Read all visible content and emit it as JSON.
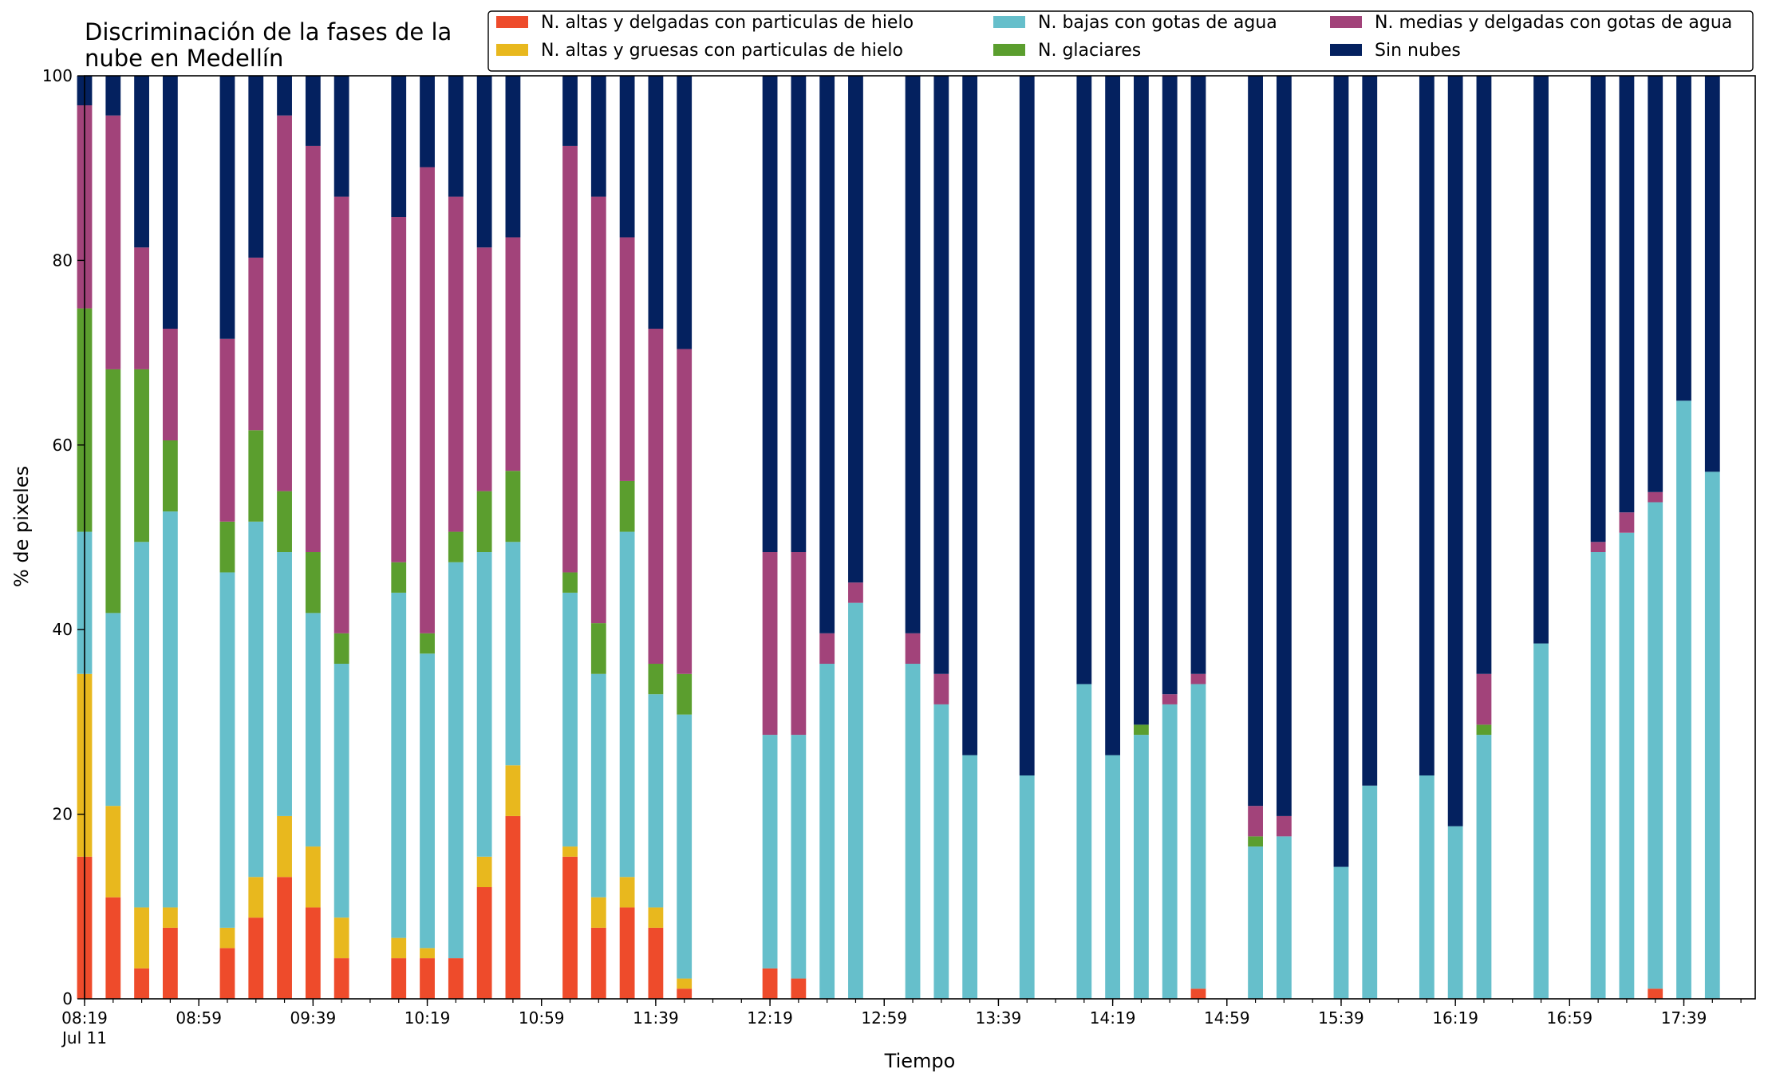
{
  "chart_data": {
    "type": "bar",
    "stacked": true,
    "title_lines": [
      "Discriminación de la fases de la",
      "nube en Medellín"
    ],
    "xlabel": "Tiempo",
    "ylabel": "% de pixeles",
    "ylim": [
      0,
      100
    ],
    "yticks": [
      0,
      20,
      40,
      60,
      80,
      100
    ],
    "x_start": "08:19",
    "x_end": "18:04",
    "x_step_minutes": 10,
    "xticks": [
      "08:19",
      "08:59",
      "09:39",
      "10:19",
      "10:59",
      "11:39",
      "12:19",
      "12:59",
      "13:39",
      "14:19",
      "14:59",
      "15:39",
      "16:19",
      "16:59",
      "17:39"
    ],
    "date_label": "Jul 11",
    "grid": false,
    "legend_position": "top-right",
    "series": [
      {
        "key": "altas_delgadas",
        "name": "N. altas y delgadas con particulas de hielo",
        "color": "#ee4b2b"
      },
      {
        "key": "altas_gruesas",
        "name": "N. altas y gruesas con particulas de hielo",
        "color": "#e8b81e"
      },
      {
        "key": "bajas",
        "name": "N. bajas con gotas de agua",
        "color": "#66bfcb"
      },
      {
        "key": "glaciares",
        "name": "N. glaciares",
        "color": "#5b9e2e"
      },
      {
        "key": "medias",
        "name": "N. medias y delgadas con gotas de agua",
        "color": "#a2437a"
      },
      {
        "key": "sin_nubes",
        "name": "Sin nubes",
        "color": "#04215f"
      }
    ],
    "legend_layout": [
      [
        "altas_delgadas",
        "bajas",
        "medias"
      ],
      [
        "altas_gruesas",
        "glaciares",
        "sin_nubes"
      ]
    ],
    "bars": [
      {
        "x": "08:19",
        "altas_delgadas": 15.4,
        "altas_gruesas": 19.8,
        "bajas": 15.4,
        "glaciares": 24.2,
        "medias": 22.0,
        "sin_nubes": 3.2
      },
      {
        "x": "08:29",
        "altas_delgadas": 11.0,
        "altas_gruesas": 9.9,
        "bajas": 20.9,
        "glaciares": 26.4,
        "medias": 27.5,
        "sin_nubes": 4.3
      },
      {
        "x": "08:39",
        "altas_delgadas": 3.3,
        "altas_gruesas": 6.6,
        "bajas": 39.6,
        "glaciares": 18.7,
        "medias": 13.2,
        "sin_nubes": 18.6
      },
      {
        "x": "08:49",
        "altas_delgadas": 7.7,
        "altas_gruesas": 2.2,
        "bajas": 42.9,
        "glaciares": 7.7,
        "medias": 12.1,
        "sin_nubes": 27.4
      },
      {
        "x": "09:09",
        "altas_delgadas": 5.5,
        "altas_gruesas": 2.2,
        "bajas": 38.5,
        "glaciares": 5.5,
        "medias": 19.8,
        "sin_nubes": 28.5
      },
      {
        "x": "09:19",
        "altas_delgadas": 8.8,
        "altas_gruesas": 4.4,
        "bajas": 38.5,
        "glaciares": 9.9,
        "medias": 18.7,
        "sin_nubes": 19.7
      },
      {
        "x": "09:29",
        "altas_delgadas": 13.2,
        "altas_gruesas": 6.6,
        "bajas": 28.6,
        "glaciares": 6.6,
        "medias": 40.7,
        "sin_nubes": 4.3
      },
      {
        "x": "09:39",
        "altas_delgadas": 9.9,
        "altas_gruesas": 6.6,
        "bajas": 25.3,
        "glaciares": 6.6,
        "medias": 44.0,
        "sin_nubes": 7.6
      },
      {
        "x": "09:49",
        "altas_delgadas": 4.4,
        "altas_gruesas": 4.4,
        "bajas": 27.5,
        "glaciares": 3.3,
        "medias": 47.3,
        "sin_nubes": 13.1
      },
      {
        "x": "10:09",
        "altas_delgadas": 4.4,
        "altas_gruesas": 2.2,
        "bajas": 37.4,
        "glaciares": 3.3,
        "medias": 37.4,
        "sin_nubes": 15.3
      },
      {
        "x": "10:19",
        "altas_delgadas": 4.4,
        "altas_gruesas": 1.1,
        "bajas": 31.9,
        "glaciares": 2.2,
        "medias": 50.5,
        "sin_nubes": 9.9
      },
      {
        "x": "10:29",
        "altas_delgadas": 4.4,
        "altas_gruesas": 0.0,
        "bajas": 42.9,
        "glaciares": 3.3,
        "medias": 36.3,
        "sin_nubes": 13.1
      },
      {
        "x": "10:39",
        "altas_delgadas": 12.1,
        "altas_gruesas": 3.3,
        "bajas": 33.0,
        "glaciares": 6.6,
        "medias": 26.4,
        "sin_nubes": 18.6
      },
      {
        "x": "10:49",
        "altas_delgadas": 19.8,
        "altas_gruesas": 5.5,
        "bajas": 24.2,
        "glaciares": 7.7,
        "medias": 25.3,
        "sin_nubes": 17.5
      },
      {
        "x": "11:09",
        "altas_delgadas": 15.4,
        "altas_gruesas": 1.1,
        "bajas": 27.5,
        "glaciares": 2.2,
        "medias": 46.2,
        "sin_nubes": 7.6
      },
      {
        "x": "11:19",
        "altas_delgadas": 7.7,
        "altas_gruesas": 3.3,
        "bajas": 24.2,
        "glaciares": 5.5,
        "medias": 46.2,
        "sin_nubes": 13.1
      },
      {
        "x": "11:29",
        "altas_delgadas": 9.9,
        "altas_gruesas": 3.3,
        "bajas": 37.4,
        "glaciares": 5.5,
        "medias": 26.4,
        "sin_nubes": 17.5
      },
      {
        "x": "11:39",
        "altas_delgadas": 7.7,
        "altas_gruesas": 2.2,
        "bajas": 23.1,
        "glaciares": 3.3,
        "medias": 36.3,
        "sin_nubes": 27.4
      },
      {
        "x": "11:49",
        "altas_delgadas": 1.1,
        "altas_gruesas": 1.1,
        "bajas": 28.6,
        "glaciares": 4.4,
        "medias": 35.2,
        "sin_nubes": 29.6
      },
      {
        "x": "12:19",
        "altas_delgadas": 3.3,
        "altas_gruesas": 0.0,
        "bajas": 25.3,
        "glaciares": 0.0,
        "medias": 19.8,
        "sin_nubes": 51.6
      },
      {
        "x": "12:29",
        "altas_delgadas": 2.2,
        "altas_gruesas": 0.0,
        "bajas": 26.4,
        "glaciares": 0.0,
        "medias": 19.8,
        "sin_nubes": 51.6
      },
      {
        "x": "12:39",
        "altas_delgadas": 0.0,
        "altas_gruesas": 0.0,
        "bajas": 36.3,
        "glaciares": 0.0,
        "medias": 3.3,
        "sin_nubes": 60.4
      },
      {
        "x": "12:49",
        "altas_delgadas": 0.0,
        "altas_gruesas": 0.0,
        "bajas": 42.9,
        "glaciares": 0.0,
        "medias": 2.2,
        "sin_nubes": 54.9
      },
      {
        "x": "13:09",
        "altas_delgadas": 0.0,
        "altas_gruesas": 0.0,
        "bajas": 36.3,
        "glaciares": 0.0,
        "medias": 3.3,
        "sin_nubes": 60.4
      },
      {
        "x": "13:19",
        "altas_delgadas": 0.0,
        "altas_gruesas": 0.0,
        "bajas": 31.9,
        "glaciares": 0.0,
        "medias": 3.3,
        "sin_nubes": 64.8
      },
      {
        "x": "13:29",
        "altas_delgadas": 0.0,
        "altas_gruesas": 0.0,
        "bajas": 26.4,
        "glaciares": 0.0,
        "medias": 0.0,
        "sin_nubes": 73.6
      },
      {
        "x": "13:49",
        "altas_delgadas": 0.0,
        "altas_gruesas": 0.0,
        "bajas": 24.2,
        "glaciares": 0.0,
        "medias": 0.0,
        "sin_nubes": 75.8
      },
      {
        "x": "14:09",
        "altas_delgadas": 0.0,
        "altas_gruesas": 0.0,
        "bajas": 34.1,
        "glaciares": 0.0,
        "medias": 0.0,
        "sin_nubes": 65.9
      },
      {
        "x": "14:19",
        "altas_delgadas": 0.0,
        "altas_gruesas": 0.0,
        "bajas": 26.4,
        "glaciares": 0.0,
        "medias": 0.0,
        "sin_nubes": 73.6
      },
      {
        "x": "14:29",
        "altas_delgadas": 0.0,
        "altas_gruesas": 0.0,
        "bajas": 28.6,
        "glaciares": 1.1,
        "medias": 0.0,
        "sin_nubes": 70.3
      },
      {
        "x": "14:39",
        "altas_delgadas": 0.0,
        "altas_gruesas": 0.0,
        "bajas": 31.9,
        "glaciares": 0.0,
        "medias": 1.1,
        "sin_nubes": 67.0
      },
      {
        "x": "14:49",
        "altas_delgadas": 1.1,
        "altas_gruesas": 0.0,
        "bajas": 33.0,
        "glaciares": 0.0,
        "medias": 1.1,
        "sin_nubes": 64.8
      },
      {
        "x": "15:09",
        "altas_delgadas": 0.0,
        "altas_gruesas": 0.0,
        "bajas": 16.5,
        "glaciares": 1.1,
        "medias": 3.3,
        "sin_nubes": 79.1
      },
      {
        "x": "15:19",
        "altas_delgadas": 0.0,
        "altas_gruesas": 0.0,
        "bajas": 17.6,
        "glaciares": 0.0,
        "medias": 2.2,
        "sin_nubes": 80.2
      },
      {
        "x": "15:39",
        "altas_delgadas": 0.0,
        "altas_gruesas": 0.0,
        "bajas": 14.3,
        "glaciares": 0.0,
        "medias": 0.0,
        "sin_nubes": 85.7
      },
      {
        "x": "15:49",
        "altas_delgadas": 0.0,
        "altas_gruesas": 0.0,
        "bajas": 23.1,
        "glaciares": 0.0,
        "medias": 0.0,
        "sin_nubes": 76.9
      },
      {
        "x": "16:09",
        "altas_delgadas": 0.0,
        "altas_gruesas": 0.0,
        "bajas": 24.2,
        "glaciares": 0.0,
        "medias": 0.0,
        "sin_nubes": 75.8
      },
      {
        "x": "16:19",
        "altas_delgadas": 0.0,
        "altas_gruesas": 0.0,
        "bajas": 18.7,
        "glaciares": 0.0,
        "medias": 0.0,
        "sin_nubes": 81.3
      },
      {
        "x": "16:29",
        "altas_delgadas": 0.0,
        "altas_gruesas": 0.0,
        "bajas": 28.6,
        "glaciares": 1.1,
        "medias": 5.5,
        "sin_nubes": 64.8
      },
      {
        "x": "16:49",
        "altas_delgadas": 0.0,
        "altas_gruesas": 0.0,
        "bajas": 38.5,
        "glaciares": 0.0,
        "medias": 0.0,
        "sin_nubes": 61.5
      },
      {
        "x": "17:09",
        "altas_delgadas": 0.0,
        "altas_gruesas": 0.0,
        "bajas": 48.4,
        "glaciares": 0.0,
        "medias": 1.1,
        "sin_nubes": 50.5
      },
      {
        "x": "17:19",
        "altas_delgadas": 0.0,
        "altas_gruesas": 0.0,
        "bajas": 50.5,
        "glaciares": 0.0,
        "medias": 2.2,
        "sin_nubes": 47.3
      },
      {
        "x": "17:29",
        "altas_delgadas": 1.1,
        "altas_gruesas": 0.0,
        "bajas": 52.7,
        "glaciares": 0.0,
        "medias": 1.1,
        "sin_nubes": 45.1
      },
      {
        "x": "17:39",
        "altas_delgadas": 0.0,
        "altas_gruesas": 0.0,
        "bajas": 64.8,
        "glaciares": 0.0,
        "medias": 0.0,
        "sin_nubes": 35.2
      },
      {
        "x": "17:49",
        "altas_delgadas": 0.0,
        "altas_gruesas": 0.0,
        "bajas": 57.1,
        "glaciares": 0.0,
        "medias": 0.0,
        "sin_nubes": 42.9
      }
    ]
  }
}
